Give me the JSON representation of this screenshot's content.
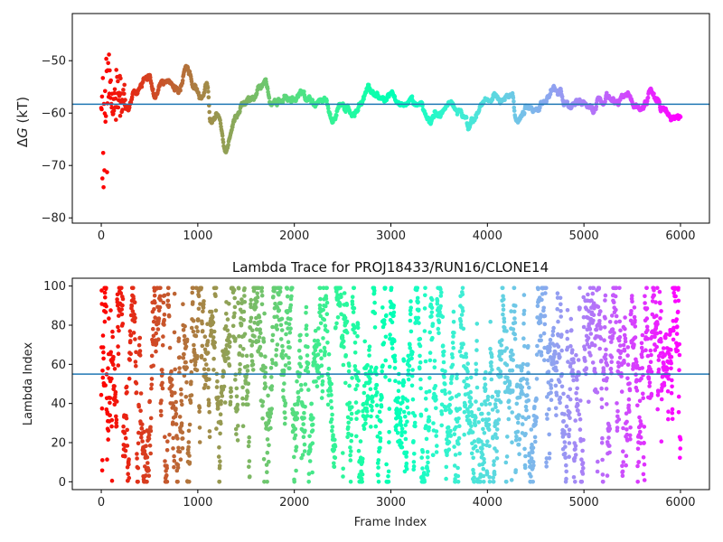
{
  "chart_data": [
    {
      "type": "scatter",
      "title": "",
      "xlabel": "",
      "ylabel": "ΔG (kT)",
      "ylabel_prefix": "Δ",
      "ylabel_var": "G",
      "ylabel_unit": " (kT)",
      "xlim": [
        -300,
        6300
      ],
      "ylim": [
        -81,
        -41
      ],
      "xticks": [
        0,
        1000,
        2000,
        3000,
        4000,
        5000,
        6000
      ],
      "xtick_labels": [
        "0",
        "1000",
        "2000",
        "3000",
        "4000",
        "5000",
        "6000"
      ],
      "yticks": [
        -80,
        -70,
        -60,
        -50
      ],
      "ytick_labels": [
        "−80",
        "−70",
        "−60",
        "−50"
      ],
      "hline": -58.3,
      "hline_color": "#1f77b4",
      "colormap": "rainbow",
      "colormap_reversed": true,
      "grid": false,
      "frames": 6000,
      "trace_keyframes": [
        [
          0,
          -50
        ],
        [
          40,
          -60
        ],
        [
          80,
          -52
        ],
        [
          120,
          -60
        ],
        [
          180,
          -56
        ],
        [
          250,
          -59
        ],
        [
          350,
          -57
        ],
        [
          450,
          -54
        ],
        [
          500,
          -52
        ],
        [
          560,
          -57
        ],
        [
          620,
          -55
        ],
        [
          700,
          -54
        ],
        [
          800,
          -56
        ],
        [
          880,
          -52
        ],
        [
          950,
          -55
        ],
        [
          1050,
          -57
        ],
        [
          1100,
          -55
        ],
        [
          1130,
          -61.5
        ],
        [
          1220,
          -61
        ],
        [
          1300,
          -67.5
        ],
        [
          1380,
          -62
        ],
        [
          1450,
          -59
        ],
        [
          1550,
          -58
        ],
        [
          1650,
          -56
        ],
        [
          1700,
          -53.5
        ],
        [
          1760,
          -58
        ],
        [
          1850,
          -58
        ],
        [
          1950,
          -57
        ],
        [
          2000,
          -57.5
        ],
        [
          2080,
          -56
        ],
        [
          2150,
          -57
        ],
        [
          2200,
          -58.5
        ],
        [
          2300,
          -57
        ],
        [
          2400,
          -61
        ],
        [
          2500,
          -59
        ],
        [
          2600,
          -60
        ],
        [
          2700,
          -58
        ],
        [
          2780,
          -55.5
        ],
        [
          2850,
          -57
        ],
        [
          2900,
          -58
        ],
        [
          3000,
          -56.5
        ],
        [
          3100,
          -59
        ],
        [
          3200,
          -58
        ],
        [
          3300,
          -58
        ],
        [
          3400,
          -61
        ],
        [
          3500,
          -60
        ],
        [
          3600,
          -58
        ],
        [
          3700,
          -60
        ],
        [
          3800,
          -62.5
        ],
        [
          3900,
          -60
        ],
        [
          4000,
          -58.5
        ],
        [
          4080,
          -56.5
        ],
        [
          4150,
          -58
        ],
        [
          4250,
          -57
        ],
        [
          4300,
          -61
        ],
        [
          4400,
          -59
        ],
        [
          4500,
          -58
        ],
        [
          4600,
          -57.5
        ],
        [
          4700,
          -56
        ],
        [
          4750,
          -55.5
        ],
        [
          4800,
          -58
        ],
        [
          4900,
          -58
        ],
        [
          5000,
          -58
        ],
        [
          5050,
          -58.5
        ],
        [
          5100,
          -59
        ],
        [
          5150,
          -57.5
        ],
        [
          5200,
          -58
        ],
        [
          5250,
          -57
        ],
        [
          5350,
          -58
        ],
        [
          5450,
          -57
        ],
        [
          5520,
          -58.5
        ],
        [
          5600,
          -58.5
        ],
        [
          5700,
          -57
        ],
        [
          5800,
          -60
        ],
        [
          5900,
          -60.5
        ],
        [
          6000,
          -60.5
        ]
      ],
      "early_scatter_range": [
        0,
        250
      ]
    },
    {
      "type": "scatter",
      "title": "Lambda Trace for PROJ18433/RUN16/CLONE14",
      "xlabel": "Frame Index",
      "ylabel": "Lambda Index",
      "xlim": [
        -300,
        6300
      ],
      "ylim": [
        -4,
        104
      ],
      "xticks": [
        0,
        1000,
        2000,
        3000,
        4000,
        5000,
        6000
      ],
      "xtick_labels": [
        "0",
        "1000",
        "2000",
        "3000",
        "4000",
        "5000",
        "6000"
      ],
      "yticks": [
        0,
        20,
        40,
        60,
        80,
        100
      ],
      "ytick_labels": [
        "0",
        "20",
        "40",
        "60",
        "80",
        "100"
      ],
      "hline": 55,
      "hline_color": "#1f77b4",
      "colormap": "rainbow",
      "colormap_reversed": true,
      "grid": false,
      "frames": 6000,
      "lambda_range": [
        0,
        99
      ]
    }
  ]
}
